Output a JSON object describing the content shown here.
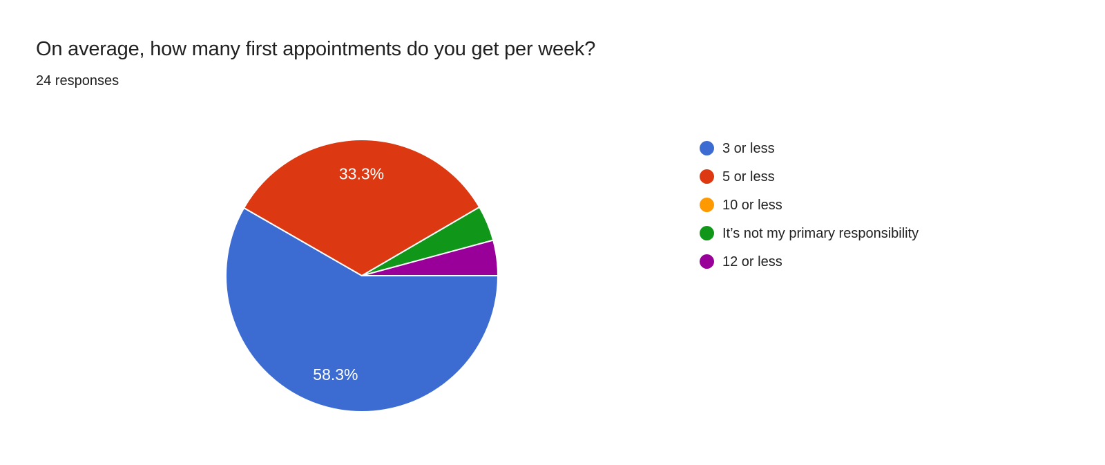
{
  "header": {
    "title": "On average, how many first appointments do you get per week?",
    "responses": "24 responses"
  },
  "chart_data": {
    "type": "pie",
    "title": "On average, how many first appointments do you get per week?",
    "subtitle": "24 responses",
    "total_responses": 24,
    "start_angle_deg": 0,
    "direction": "clockwise",
    "legend_position": "right",
    "percent_label_color": "#ffffff",
    "slice_border_color": "#ffffff",
    "slices": [
      {
        "label": "3 or less",
        "pct": 58.3,
        "pct_label": "58.3%",
        "color": "#3c6bd2"
      },
      {
        "label": "5 or less",
        "pct": 33.3,
        "pct_label": "33.3%",
        "color": "#dc3912"
      },
      {
        "label": "10 or less",
        "pct": 0,
        "pct_label": "",
        "color": "#ff9900"
      },
      {
        "label": "It’s not my primary responsibility",
        "pct": 4.2,
        "pct_label": "",
        "color": "#109618"
      },
      {
        "label": "12 or less",
        "pct": 4.2,
        "pct_label": "",
        "color": "#990099"
      }
    ]
  }
}
